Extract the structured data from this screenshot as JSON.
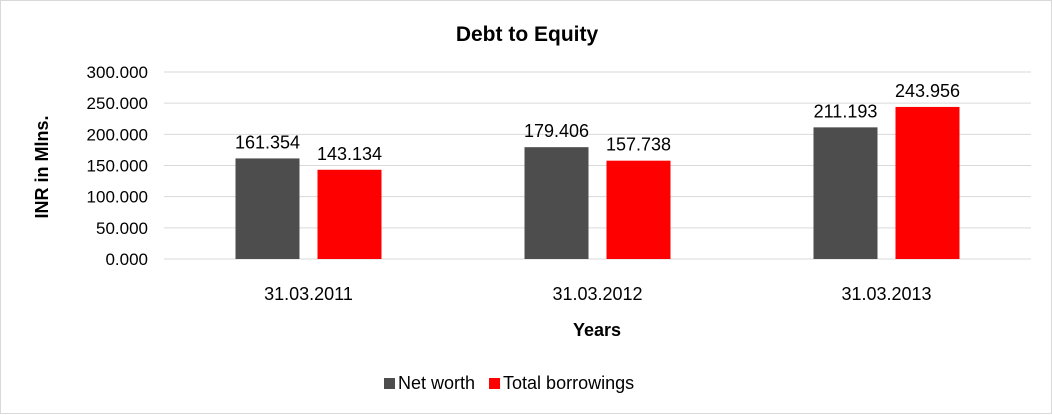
{
  "chart_data": {
    "type": "bar",
    "title": "Debt to Equity",
    "xlabel": "Years",
    "ylabel": "INR in Mlns.",
    "categories": [
      "31.03.2011",
      "31.03.2012",
      "31.03.2013"
    ],
    "series": [
      {
        "name": "Net worth",
        "values": [
          161.354,
          179.406,
          211.193
        ],
        "color": "#4d4d4d"
      },
      {
        "name": "Total borrowings",
        "values": [
          143.134,
          157.738,
          243.956
        ],
        "color": "#ff0000"
      }
    ],
    "ylim": [
      0,
      300
    ],
    "yticks": [
      "0.000",
      "50.000",
      "100.000",
      "150.000",
      "200.000",
      "250.000",
      "300.000"
    ],
    "data_labels": [
      [
        "161.354",
        "179.406",
        "211.193"
      ],
      [
        "143.134",
        "157.738",
        "243.956"
      ]
    ],
    "grid": true,
    "gridline_color": "#d9d9d9",
    "legend_position": "bottom"
  }
}
